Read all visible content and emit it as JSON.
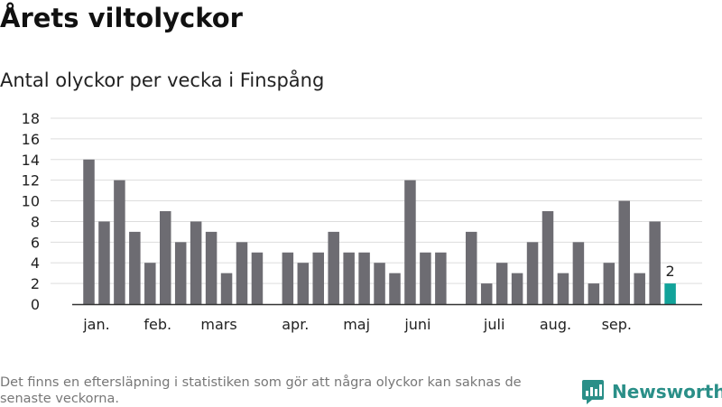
{
  "header": {
    "title": "Årets viltolyckor",
    "subtitle": "Antal olyckor per vecka i Finspång"
  },
  "footer": {
    "note": "Det finns en eftersläpning i statistiken som gör att några olyckor kan saknas de senaste veckorna.",
    "brand": "Newsworthy",
    "brand_icon": "newsworthy-logo-icon"
  },
  "colors": {
    "bar": "#6d6c72",
    "highlight": "#12a39a",
    "grid": "#dddddd",
    "axis": "#333333",
    "brand": "#2a8f88"
  },
  "chart_data": {
    "type": "bar",
    "title": "Antal olyckor per vecka i Finspång",
    "xlabel": "",
    "ylabel": "",
    "ylim": [
      0,
      18
    ],
    "yticks": [
      0,
      2,
      4,
      6,
      8,
      10,
      12,
      14,
      16,
      18
    ],
    "grid": true,
    "legend": "none",
    "weeks": [
      1,
      2,
      3,
      4,
      5,
      6,
      7,
      8,
      9,
      10,
      11,
      12,
      13,
      14,
      15,
      16,
      17,
      18,
      19,
      20,
      21,
      22,
      23,
      24,
      25,
      26,
      27,
      28,
      29,
      30,
      31,
      32,
      33,
      34,
      35,
      36,
      37,
      38,
      39
    ],
    "values": [
      14,
      8,
      12,
      7,
      4,
      9,
      6,
      8,
      7,
      3,
      6,
      5,
      null,
      5,
      4,
      5,
      7,
      5,
      5,
      4,
      3,
      12,
      5,
      5,
      null,
      7,
      2,
      4,
      3,
      6,
      9,
      3,
      6,
      2,
      4,
      10,
      3,
      8,
      2
    ],
    "highlight_index": 38,
    "highlight_label": "2",
    "month_labels": [
      {
        "label": "jan.",
        "week": 1.5
      },
      {
        "label": "feb.",
        "week": 5.5
      },
      {
        "label": "mars",
        "week": 9.5
      },
      {
        "label": "apr.",
        "week": 14.5
      },
      {
        "label": "maj",
        "week": 18.5
      },
      {
        "label": "juni",
        "week": 22.5
      },
      {
        "label": "juli",
        "week": 27.5
      },
      {
        "label": "aug.",
        "week": 31.5
      },
      {
        "label": "sep.",
        "week": 35.5
      }
    ]
  }
}
